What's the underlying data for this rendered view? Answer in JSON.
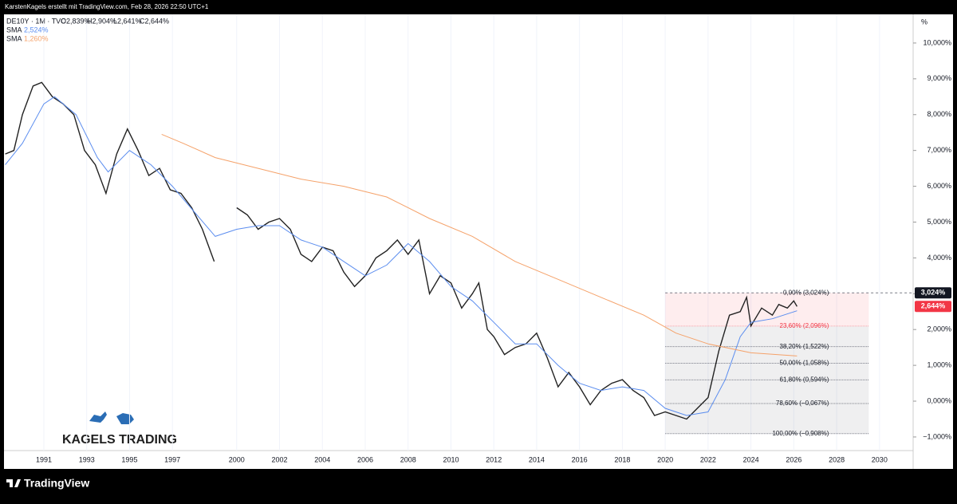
{
  "header": "KarstenKagels erstellt mit TradingView.com, Feb 28, 2026 22:50 UTC+1",
  "footer": "TradingView",
  "logo": "KAGELS TRADING",
  "chart_data": {
    "type": "line",
    "legend": {
      "symbol": "DE10Y · 1M · TVC",
      "ohlc": [
        "O2,839%",
        "H2,904%",
        "L2,641%",
        "C2,644%"
      ],
      "sma_labels": [
        "SMA",
        "SMA"
      ],
      "sma_values": [
        "2,524%",
        "1,260%"
      ]
    },
    "unit": "%",
    "xlim": [
      1989.14,
      2031.57
    ],
    "xticks": [
      1991,
      1993,
      1995,
      1997,
      2000,
      2002,
      2004,
      2006,
      2008,
      2010,
      2012,
      2014,
      2016,
      2018,
      2020,
      2022,
      2024,
      2026,
      2028,
      2030
    ],
    "ylim": [
      -1.38,
      10.8
    ],
    "yticks": [
      {
        "value": -1,
        "label": "−1,000%"
      },
      {
        "value": 0,
        "label": "0,000%"
      },
      {
        "value": 1,
        "label": "1,000%"
      },
      {
        "value": 2,
        "label": "2,000%"
      },
      {
        "value": 3,
        "label": "3,000%"
      },
      {
        "value": 4,
        "label": "4,000%"
      },
      {
        "value": 5,
        "label": "5,000%"
      },
      {
        "value": 6,
        "label": "6,000%"
      },
      {
        "value": 7,
        "label": "7,000%"
      },
      {
        "value": 8,
        "label": "8,000%"
      },
      {
        "value": 9,
        "label": "9,000%"
      },
      {
        "value": 10,
        "label": "10,000%"
      }
    ],
    "series": [
      {
        "name": "DE10Y",
        "color": "#222222",
        "x": [
          1989.2,
          1989.6,
          1990.0,
          1990.5,
          1990.9,
          1991.4,
          1991.9,
          1992.4,
          1992.9,
          1993.4,
          1993.9,
          1994.4,
          1994.9,
          1995.4,
          1995.9,
          1996.4,
          1996.9,
          1997.4,
          1997.9,
          1998.4,
          1998.95,
          1999.5,
          2000.0,
          2000.5,
          2001.0,
          2001.5,
          2002.0,
          2002.5,
          2003.0,
          2003.5,
          2004.0,
          2004.5,
          2005.0,
          2005.5,
          2006.0,
          2006.5,
          2007.0,
          2007.5,
          2008.0,
          2008.5,
          2009.0,
          2009.5,
          2010.0,
          2010.5,
          2011.0,
          2011.3,
          2011.7,
          2012.0,
          2012.5,
          2013.0,
          2013.5,
          2014.0,
          2014.5,
          2015.0,
          2015.5,
          2016.0,
          2016.5,
          2017.0,
          2017.5,
          2018.0,
          2018.5,
          2019.0,
          2019.5,
          2020.0,
          2020.5,
          2021.0,
          2021.5,
          2022.0,
          2022.5,
          2023.0,
          2023.5,
          2023.8,
          2024.0,
          2024.5,
          2025.0,
          2025.3,
          2025.7,
          2026.0,
          2026.15
        ],
        "values": [
          6.9,
          7.0,
          8.0,
          8.8,
          8.9,
          8.5,
          8.3,
          8.0,
          7.0,
          6.6,
          5.8,
          6.9,
          7.6,
          7.0,
          6.3,
          6.5,
          5.9,
          5.8,
          5.4,
          4.8,
          3.9,
          null,
          5.4,
          5.2,
          4.8,
          5.0,
          5.1,
          4.8,
          4.1,
          3.9,
          4.3,
          4.2,
          3.6,
          3.2,
          3.5,
          4.0,
          4.2,
          4.5,
          4.1,
          4.5,
          3.0,
          3.5,
          3.3,
          2.6,
          3.0,
          3.3,
          2.0,
          1.8,
          1.3,
          1.5,
          1.6,
          1.9,
          1.2,
          0.4,
          0.8,
          0.4,
          -0.1,
          0.3,
          0.5,
          0.6,
          0.3,
          0.1,
          -0.4,
          -0.3,
          -0.4,
          -0.5,
          -0.2,
          0.1,
          1.4,
          2.4,
          2.5,
          2.9,
          2.1,
          2.6,
          2.4,
          2.7,
          2.6,
          2.8,
          2.644
        ]
      },
      {
        "name": "SMA",
        "color": "#5b8def",
        "x": [
          1989.2,
          1990.0,
          1991.0,
          1991.5,
          1992.5,
          1993.5,
          1994.0,
          1995.0,
          1996.0,
          1997.0,
          1998.0,
          1999.0,
          2000.0,
          2001.0,
          2002.0,
          2003.0,
          2004.0,
          2005.0,
          2006.0,
          2007.0,
          2008.0,
          2009.0,
          2010.0,
          2011.0,
          2012.0,
          2013.0,
          2014.0,
          2015.0,
          2016.0,
          2017.0,
          2018.0,
          2019.0,
          2020.0,
          2021.0,
          2022.0,
          2022.8,
          2023.5,
          2024.0,
          2025.0,
          2026.15
        ],
        "values": [
          6.6,
          7.2,
          8.3,
          8.5,
          8.0,
          6.8,
          6.4,
          7.0,
          6.6,
          6.0,
          5.3,
          4.6,
          4.8,
          4.9,
          4.9,
          4.5,
          4.3,
          3.9,
          3.5,
          3.8,
          4.4,
          3.9,
          3.2,
          2.8,
          2.2,
          1.6,
          1.6,
          1.0,
          0.5,
          0.3,
          0.4,
          0.3,
          -0.2,
          -0.4,
          -0.3,
          0.6,
          1.8,
          2.2,
          2.3,
          2.524
        ]
      },
      {
        "name": "SMA",
        "color": "#f5a26a",
        "x": [
          1996.5,
          1997.5,
          1999.0,
          2001.0,
          2003.0,
          2005.0,
          2007.0,
          2009.0,
          2011.0,
          2013.0,
          2015.0,
          2017.0,
          2019.0,
          2020.5,
          2022.0,
          2024.0,
          2026.15
        ],
        "values": [
          7.45,
          7.2,
          6.8,
          6.5,
          6.2,
          6.0,
          5.7,
          5.1,
          4.6,
          3.9,
          3.4,
          2.9,
          2.4,
          1.9,
          1.6,
          1.35,
          1.26
        ]
      }
    ],
    "fib_x": [
      2020.0,
      2029.5
    ],
    "fib_levels": [
      {
        "value": 3.024,
        "label": "0,00% (3,024%)"
      },
      {
        "value": 2.096,
        "label": "23,60% (2,096%)"
      },
      {
        "value": 1.522,
        "label": "38,20% (1,522%)"
      },
      {
        "value": 1.058,
        "label": "50,00% (1,058%)"
      },
      {
        "value": 0.594,
        "label": "61,80% (0,594%)"
      },
      {
        "value": -0.067,
        "label": "78,60% (−0,067%)"
      },
      {
        "value": -0.908,
        "label": "100,00% (−0,908%)"
      }
    ],
    "price_labels": [
      {
        "value": 3.024,
        "label": "3,024%",
        "color": "#131722"
      },
      {
        "value": 2.644,
        "label": "2,644%",
        "color": "#f23645"
      }
    ]
  }
}
